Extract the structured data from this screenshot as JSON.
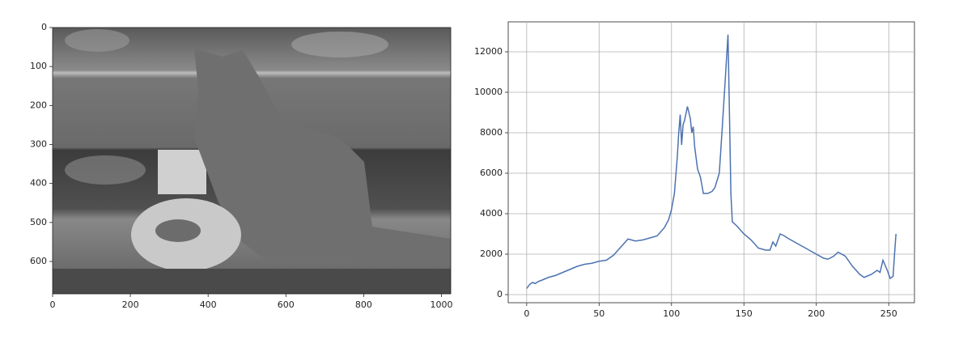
{
  "chart_data": [
    {
      "type": "image",
      "xlim": [
        0,
        1024
      ],
      "ylim": [
        683,
        0
      ],
      "xticks": [
        0,
        200,
        400,
        600,
        800,
        1000
      ],
      "yticks": [
        0,
        100,
        200,
        300,
        400,
        500,
        600
      ],
      "grid": false
    },
    {
      "type": "line",
      "color": "#4c72b0",
      "grid": true,
      "xlim": [
        -12.75,
        267.75
      ],
      "ylim": [
        -400,
        13480
      ],
      "xticks": [
        0,
        50,
        100,
        150,
        200,
        250
      ],
      "yticks": [
        0,
        2000,
        4000,
        6000,
        8000,
        10000,
        12000
      ],
      "x": [
        0,
        2,
        4,
        6,
        8,
        10,
        15,
        20,
        25,
        30,
        35,
        40,
        45,
        50,
        55,
        60,
        65,
        70,
        75,
        80,
        85,
        90,
        95,
        98,
        100,
        102,
        104,
        105,
        106,
        107,
        108,
        109,
        111,
        113,
        114,
        115,
        116,
        118,
        120,
        122,
        125,
        128,
        130,
        133,
        135,
        137,
        139,
        140,
        141,
        142,
        145,
        150,
        155,
        160,
        165,
        168,
        170,
        172,
        175,
        178,
        180,
        185,
        190,
        195,
        200,
        205,
        208,
        212,
        215,
        220,
        225,
        230,
        233,
        238,
        242,
        244,
        246,
        249,
        251,
        253,
        254,
        255
      ],
      "values": [
        300,
        500,
        600,
        550,
        650,
        700,
        850,
        950,
        1100,
        1250,
        1400,
        1500,
        1550,
        1650,
        1700,
        1950,
        2350,
        2750,
        2650,
        2700,
        2800,
        2900,
        3300,
        3700,
        4200,
        5000,
        6800,
        8000,
        8900,
        7400,
        8400,
        8600,
        9300,
        8700,
        8000,
        8300,
        7300,
        6200,
        5800,
        5000,
        5000,
        5100,
        5300,
        6000,
        8200,
        10500,
        12850,
        9000,
        5000,
        3600,
        3400,
        3000,
        2700,
        2300,
        2200,
        2200,
        2600,
        2400,
        3000,
        2900,
        2800,
        2600,
        2400,
        2200,
        2000,
        1800,
        1750,
        1900,
        2100,
        1900,
        1400,
        1000,
        850,
        1000,
        1200,
        1100,
        1700,
        1200,
        800,
        900,
        2000,
        3000
      ]
    }
  ]
}
